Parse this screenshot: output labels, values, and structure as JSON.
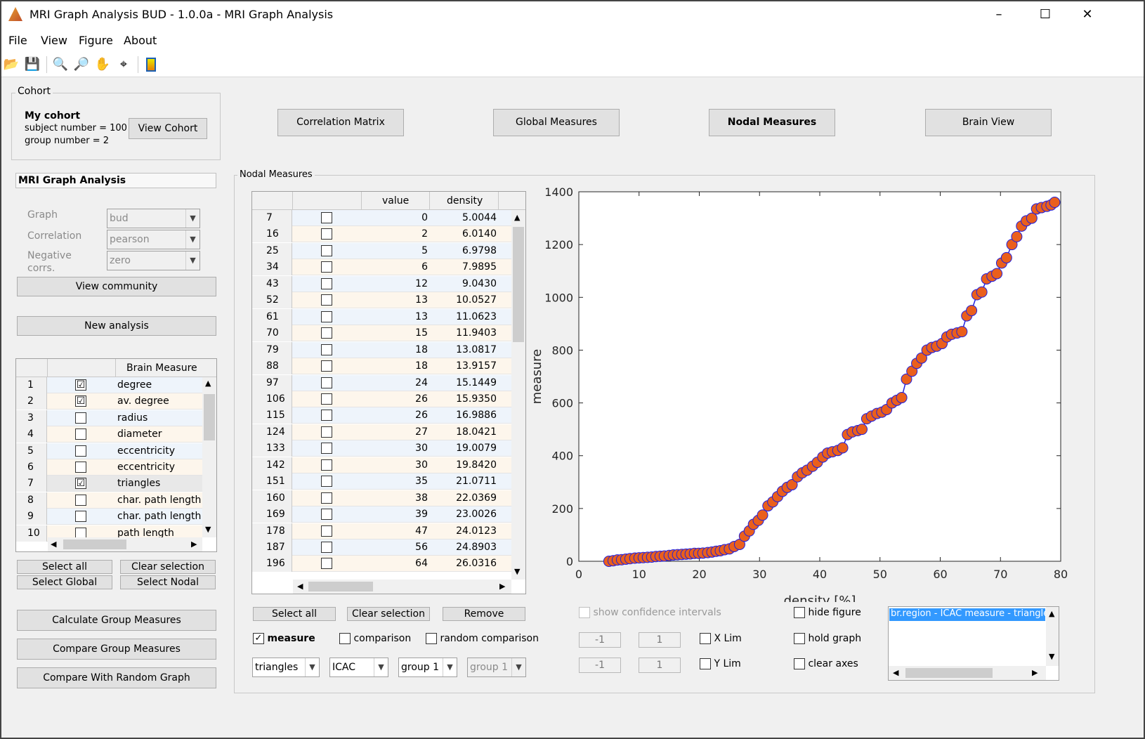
{
  "window": {
    "title": "MRI Graph Analysis BUD - 1.0.0a - MRI Graph Analysis",
    "minimize": "–",
    "maximize": "☐",
    "close": "✕"
  },
  "menu": [
    "File",
    "View",
    "Figure",
    "About"
  ],
  "cohort": {
    "group_label": "Cohort",
    "name": "My cohort",
    "subject_line": "subject number = 100",
    "group_line": "group number = 2",
    "view_button": "View Cohort"
  },
  "nav_buttons": [
    "Correlation Matrix",
    "Global Measures",
    "Nodal Measures",
    "Brain View"
  ],
  "analysis": {
    "title": "MRI Graph Analysis",
    "graph_label": "Graph",
    "graph_value": "bud",
    "correlation_label": "Correlation",
    "correlation_value": "pearson",
    "negative_label_1": "Negative",
    "negative_label_2": "corrs.",
    "negative_value": "zero",
    "view_community": "View community",
    "new_analysis": "New analysis"
  },
  "brain_measures": {
    "header": "Brain Measure",
    "rows": [
      {
        "n": "1",
        "checked": "☑",
        "name": "degree"
      },
      {
        "n": "2",
        "checked": "☑",
        "name": "av. degree"
      },
      {
        "n": "3",
        "checked": "",
        "name": "radius"
      },
      {
        "n": "4",
        "checked": "",
        "name": "diameter"
      },
      {
        "n": "5",
        "checked": "",
        "name": "eccentricity"
      },
      {
        "n": "6",
        "checked": "",
        "name": "eccentricity"
      },
      {
        "n": "7",
        "checked": "☑",
        "name": "triangles"
      },
      {
        "n": "8",
        "checked": "",
        "name": "char. path length"
      },
      {
        "n": "9",
        "checked": "",
        "name": "char. path length ..."
      },
      {
        "n": "10",
        "checked": "",
        "name": "path length"
      }
    ]
  },
  "left_buttons": {
    "select_all": "Select all",
    "clear_selection": "Clear selection",
    "select_global": "Select Global",
    "select_nodal": "Select Nodal",
    "calc_group": "Calculate Group Measures",
    "compare_group": "Compare Group Measures",
    "compare_random": "Compare With Random Graph"
  },
  "nodal": {
    "group_label": "Nodal Measures",
    "col_value": "value",
    "col_density": "density",
    "rows": [
      {
        "n": "7",
        "value": "0",
        "density": "5.0044"
      },
      {
        "n": "16",
        "value": "2",
        "density": "6.0140"
      },
      {
        "n": "25",
        "value": "5",
        "density": "6.9798"
      },
      {
        "n": "34",
        "value": "6",
        "density": "7.9895"
      },
      {
        "n": "43",
        "value": "12",
        "density": "9.0430"
      },
      {
        "n": "52",
        "value": "13",
        "density": "10.0527"
      },
      {
        "n": "61",
        "value": "13",
        "density": "11.0623"
      },
      {
        "n": "70",
        "value": "15",
        "density": "11.9403"
      },
      {
        "n": "79",
        "value": "18",
        "density": "13.0817"
      },
      {
        "n": "88",
        "value": "18",
        "density": "13.9157"
      },
      {
        "n": "97",
        "value": "24",
        "density": "15.1449"
      },
      {
        "n": "106",
        "value": "26",
        "density": "15.9350"
      },
      {
        "n": "115",
        "value": "26",
        "density": "16.9886"
      },
      {
        "n": "124",
        "value": "27",
        "density": "18.0421"
      },
      {
        "n": "133",
        "value": "30",
        "density": "19.0079"
      },
      {
        "n": "142",
        "value": "30",
        "density": "19.8420"
      },
      {
        "n": "151",
        "value": "35",
        "density": "21.0711"
      },
      {
        "n": "160",
        "value": "38",
        "density": "22.0369"
      },
      {
        "n": "169",
        "value": "39",
        "density": "23.0026"
      },
      {
        "n": "178",
        "value": "47",
        "density": "24.0123"
      },
      {
        "n": "187",
        "value": "56",
        "density": "24.8903"
      },
      {
        "n": "196",
        "value": "64",
        "density": "26.0316"
      }
    ],
    "select_all": "Select all",
    "clear_selection": "Clear selection",
    "remove": "Remove",
    "measure_label": "measure",
    "comparison_label": "comparison",
    "random_comparison_label": "random comparison",
    "dd_measure": "triangles",
    "dd_type": "ICAC",
    "dd_group1": "group 1",
    "dd_group2": "group 1"
  },
  "plot_controls": {
    "show_ci": "show confidence intervals",
    "hide_figure": "hide figure",
    "hold_graph": "hold graph",
    "clear_axes": "clear axes",
    "xlim_label": "X Lim",
    "ylim_label": "Y Lim",
    "xmin": "-1",
    "xmax": "1",
    "ymin": "-1",
    "ymax": "1",
    "listbox_item": "br.region - ICAC measure - triangle"
  },
  "chart_data": {
    "type": "line",
    "title": "",
    "xlabel": "density [%]",
    "ylabel": "measure",
    "xlim": [
      0,
      80
    ],
    "ylim": [
      0,
      1400
    ],
    "xticks": [
      "0",
      "10",
      "20",
      "30",
      "40",
      "50",
      "60",
      "70",
      "80"
    ],
    "yticks": [
      "0",
      "200",
      "400",
      "600",
      "800",
      "1000",
      "1200",
      "1400"
    ],
    "grid": false,
    "colors": {
      "line": "#1f1fe0",
      "marker": "#ea5f1c"
    },
    "x": [
      5.0,
      5.7,
      6.4,
      7.1,
      7.8,
      8.5,
      9.3,
      10.0,
      10.7,
      11.4,
      12.1,
      12.8,
      13.5,
      14.2,
      15.0,
      15.7,
      16.4,
      17.1,
      17.8,
      18.5,
      19.2,
      19.9,
      20.6,
      21.4,
      22.1,
      22.8,
      23.5,
      24.2,
      25.0,
      25.8,
      26.7,
      27.5,
      28.3,
      29.0,
      29.8,
      30.5,
      31.4,
      32.2,
      33.0,
      33.8,
      34.6,
      35.4,
      36.3,
      37.1,
      37.9,
      38.8,
      39.6,
      40.5,
      41.3,
      42.1,
      43.0,
      43.8,
      44.6,
      45.4,
      46.3,
      47.0,
      47.8,
      48.6,
      49.5,
      50.3,
      51.1,
      52.0,
      52.8,
      53.6,
      54.4,
      55.3,
      56.1,
      56.9,
      57.8,
      58.6,
      59.4,
      60.3,
      61.1,
      61.9,
      62.8,
      63.6,
      64.4,
      65.2,
      66.1,
      66.9,
      67.7,
      68.6,
      69.4,
      70.2,
      71.0,
      71.9,
      72.7,
      73.5,
      74.3,
      75.2,
      76.0,
      76.8,
      77.7,
      78.4,
      79.0
    ],
    "y": [
      0,
      2,
      5,
      6,
      8,
      10,
      12,
      13,
      14,
      15,
      16,
      18,
      19,
      20,
      22,
      24,
      25,
      26,
      27,
      28,
      30,
      30,
      31,
      33,
      35,
      38,
      40,
      44,
      47,
      56,
      64,
      95,
      115,
      140,
      155,
      175,
      210,
      225,
      245,
      265,
      280,
      290,
      320,
      335,
      345,
      360,
      375,
      395,
      410,
      415,
      420,
      430,
      480,
      490,
      495,
      500,
      540,
      550,
      560,
      565,
      575,
      600,
      610,
      620,
      690,
      720,
      750,
      770,
      800,
      810,
      815,
      825,
      850,
      860,
      865,
      870,
      930,
      950,
      1010,
      1020,
      1070,
      1080,
      1090,
      1130,
      1150,
      1200,
      1230,
      1270,
      1290,
      1300,
      1335,
      1340,
      1345,
      1350,
      1360
    ]
  }
}
